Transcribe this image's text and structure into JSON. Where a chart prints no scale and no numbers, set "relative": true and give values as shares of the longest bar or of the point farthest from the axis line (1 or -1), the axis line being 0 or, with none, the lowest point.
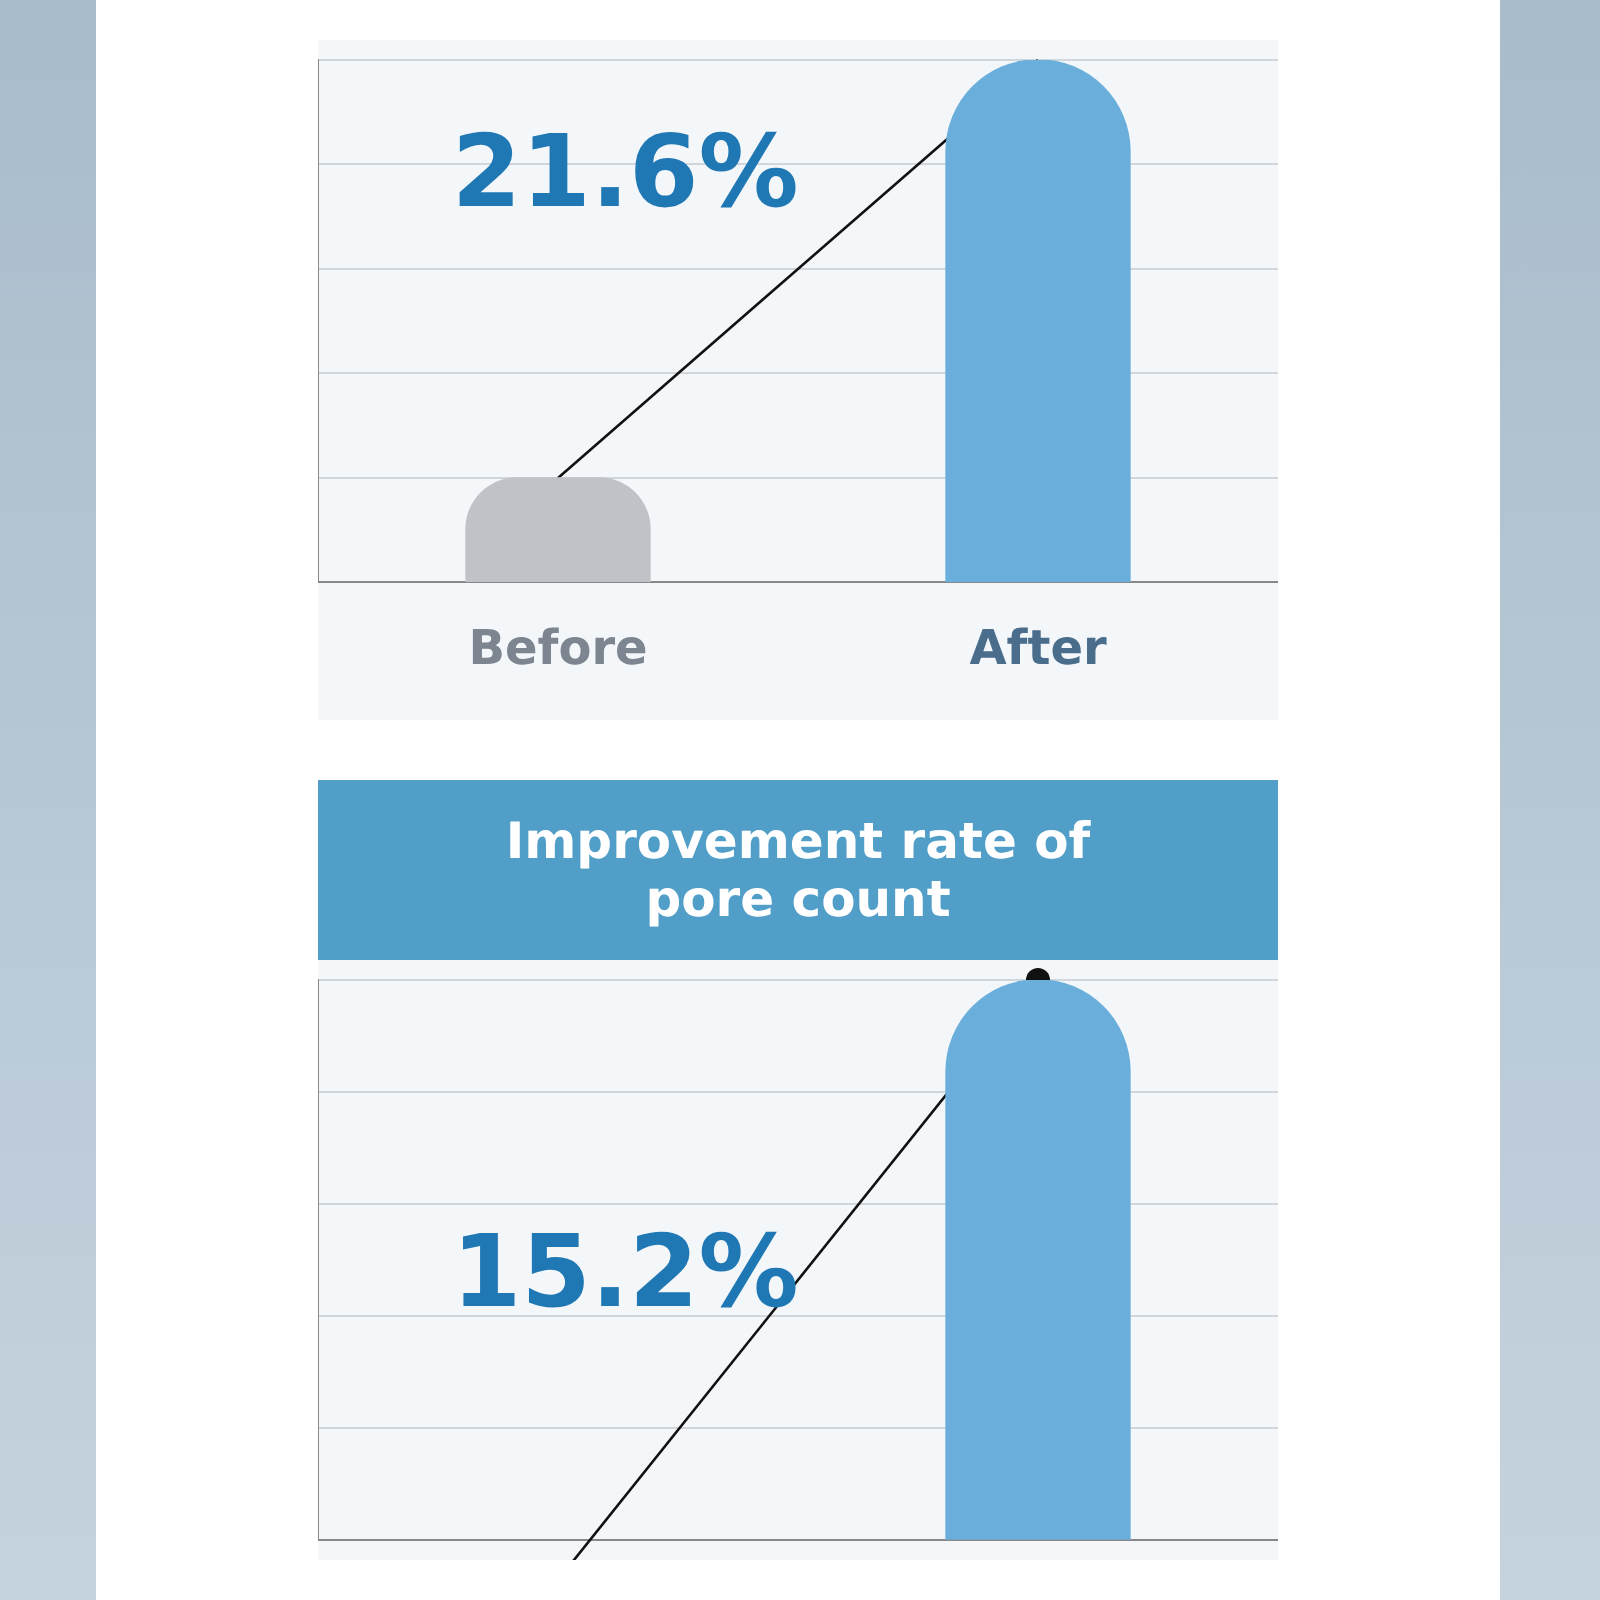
{
  "chart_data": [
    {
      "type": "bar",
      "relative": true,
      "categories": [
        "Before",
        "After"
      ],
      "values": [
        0.2,
        1
      ],
      "colors": [
        "#c0c2c7",
        "#6aaedb"
      ],
      "annotations": [
        "21.6%"
      ],
      "grid": "y",
      "legend": false
    },
    {
      "type": "bar",
      "relative": true,
      "title": "Improvement rate of pore count",
      "categories": [
        null,
        null
      ],
      "values": [
        null,
        1
      ],
      "colors": [
        "#c0c2c7",
        "#6aaedb"
      ],
      "annotations": [
        "15.2%"
      ],
      "grid": "y",
      "legend": false
    }
  ]
}
